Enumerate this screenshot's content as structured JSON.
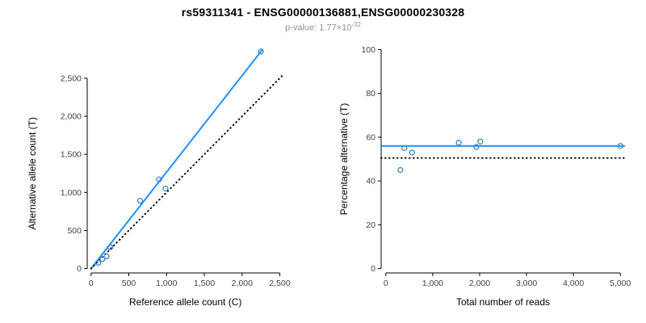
{
  "header": {
    "title": "rs59311341 - ENSG00000136881,ENSG00000230328",
    "subtitle_prefix": "p-value: ",
    "pvalue_base": "1.77×10",
    "pvalue_exponent": "-32"
  },
  "colors": {
    "accent_blue": "#1E90FF",
    "point_blue": "#3a87c9",
    "reference_black": "#000000",
    "subtitle_gray": "#8f8f8f"
  },
  "chart_data": [
    {
      "type": "scatter",
      "title": "",
      "xlabel": "Reference allele count (C)",
      "ylabel": "Alternative allele count (T)",
      "xlim": [
        0,
        2500
      ],
      "ylim": [
        0,
        2500
      ],
      "grid": false,
      "xticks": {
        "values": [
          0,
          500,
          1000,
          1500,
          2000,
          2500
        ],
        "labels": [
          "0",
          "500",
          "1,000",
          "1,500",
          "2,000",
          "2,500"
        ]
      },
      "yticks": {
        "values": [
          0,
          500,
          1000,
          1500,
          2000,
          2500
        ],
        "labels": [
          "0",
          "500",
          "1,000",
          "1,500",
          "2,000",
          "2,500"
        ]
      },
      "points": [
        [
          95,
          75
        ],
        [
          150,
          125
        ],
        [
          205,
          160
        ],
        [
          255,
          280
        ],
        [
          650,
          890
        ],
        [
          900,
          1170
        ],
        [
          985,
          1050
        ],
        [
          2250,
          2850
        ]
      ],
      "lines": [
        {
          "name": "fit-line",
          "x1": 0,
          "y1": 0,
          "x2": 2270,
          "y2": 2875,
          "color": "#1E90FF",
          "style": "solid"
        },
        {
          "name": "identity-line",
          "x1": 0,
          "y1": 0,
          "x2": 2550,
          "y2": 2550,
          "color": "#000000",
          "style": "dotted"
        }
      ]
    },
    {
      "type": "scatter",
      "title": "",
      "xlabel": "Total number of reads",
      "ylabel": "Percentage alternative (T)",
      "xlim": [
        0,
        5000
      ],
      "ylim": [
        0,
        100
      ],
      "grid": false,
      "xticks": {
        "values": [
          0,
          1000,
          2000,
          3000,
          4000,
          5000
        ],
        "labels": [
          "0",
          "1,000",
          "2,000",
          "3,000",
          "4,000",
          "5,000"
        ]
      },
      "yticks": {
        "values": [
          0,
          20,
          40,
          60,
          80,
          100
        ],
        "labels": [
          "0",
          "20",
          "40",
          "60",
          "80",
          "100"
        ]
      },
      "points": [
        [
          310,
          45
        ],
        [
          395,
          55
        ],
        [
          560,
          53
        ],
        [
          1555,
          57.5
        ],
        [
          1930,
          55.5
        ],
        [
          2015,
          58
        ],
        [
          5000,
          56
        ]
      ],
      "lines": [
        {
          "name": "fit-line",
          "h": 56,
          "color": "#1E90FF",
          "style": "solid"
        },
        {
          "name": "expected-line",
          "h": 50.5,
          "color": "#000000",
          "style": "dotted"
        }
      ]
    }
  ]
}
